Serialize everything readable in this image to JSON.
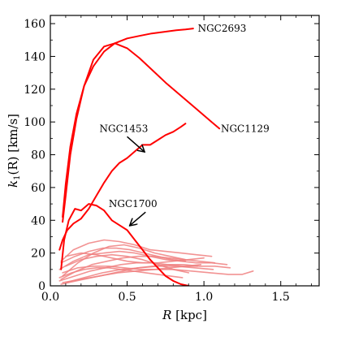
{
  "chart_data": {
    "type": "line",
    "xlabel": "R [kpc]",
    "xlabel_var": "R",
    "xlabel_unit": " [kpc]",
    "ylabel": "k1(R) [km/s]",
    "ylabel_var": "k",
    "ylabel_sub": "1",
    "ylabel_arg": "(R)",
    "ylabel_unit": " [km/s]",
    "xlim": [
      0,
      1.75
    ],
    "ylim": [
      0,
      165
    ],
    "xticks": [
      0.0,
      0.5,
      1.0,
      1.5
    ],
    "xtick_labels": [
      "0.0",
      "0.5",
      "1.0",
      "1.5"
    ],
    "yticks": [
      0,
      20,
      40,
      60,
      80,
      100,
      120,
      140,
      160
    ],
    "ytick_labels": [
      "0",
      "20",
      "40",
      "60",
      "80",
      "100",
      "120",
      "140",
      "160"
    ],
    "grid": false,
    "legend": "none",
    "colors": {
      "highlight": "#ff0000",
      "faint": "#f08080"
    },
    "annotations": [
      {
        "text": "NGC2693",
        "x": 0.96,
        "y": 157,
        "arrow": false
      },
      {
        "text": "NGC1129",
        "x": 1.11,
        "y": 96,
        "arrow": false
      },
      {
        "text": "NGC1453",
        "x": 0.32,
        "y": 96,
        "arrow": true,
        "arrow_from": [
          0.5,
          91
        ],
        "arrow_to": [
          0.61,
          82
        ]
      },
      {
        "text": "NGC1700",
        "x": 0.38,
        "y": 50,
        "arrow": true,
        "arrow_from": [
          0.62,
          45
        ],
        "arrow_to": [
          0.52,
          37
        ]
      }
    ],
    "series": [
      {
        "name": "NGC2693",
        "style": "highlight",
        "x": [
          0.08,
          0.1,
          0.13,
          0.17,
          0.22,
          0.28,
          0.35,
          0.42,
          0.5,
          0.58,
          0.66,
          0.74,
          0.82,
          0.88,
          0.93
        ],
        "y": [
          42,
          62,
          85,
          105,
          122,
          134,
          143,
          148,
          151,
          152.5,
          154,
          155,
          156,
          156.5,
          157
        ]
      },
      {
        "name": "NGC1129",
        "style": "highlight",
        "x": [
          0.08,
          0.1,
          0.13,
          0.17,
          0.22,
          0.28,
          0.35,
          0.42,
          0.5,
          0.58,
          0.66,
          0.75,
          0.85,
          0.95,
          1.05,
          1.1
        ],
        "y": [
          39,
          55,
          80,
          102,
          122,
          138,
          146,
          148,
          145,
          139,
          132,
          124,
          116,
          108,
          100,
          96
        ]
      },
      {
        "name": "NGC1453",
        "style": "highlight",
        "x": [
          0.06,
          0.08,
          0.11,
          0.15,
          0.2,
          0.25,
          0.3,
          0.35,
          0.4,
          0.45,
          0.5,
          0.55,
          0.6,
          0.65,
          0.7,
          0.75,
          0.8,
          0.85,
          0.88
        ],
        "y": [
          22,
          28,
          34,
          38,
          41,
          47,
          55,
          63,
          70,
          75,
          78,
          82,
          86,
          86,
          89,
          92,
          94,
          97,
          99
        ]
      },
      {
        "name": "NGC1700",
        "style": "highlight",
        "x": [
          0.07,
          0.09,
          0.12,
          0.16,
          0.2,
          0.25,
          0.3,
          0.35,
          0.4,
          0.45,
          0.5,
          0.55,
          0.6,
          0.65,
          0.7,
          0.75,
          0.8,
          0.85,
          0.9
        ],
        "y": [
          10,
          28,
          40,
          47,
          46,
          50,
          49,
          46,
          40,
          37,
          34,
          28,
          22,
          16,
          11,
          6,
          3,
          1,
          0
        ]
      },
      {
        "name": "",
        "style": "faint",
        "x": [
          0.07,
          0.15,
          0.25,
          0.35,
          0.45,
          0.55,
          0.65,
          0.75,
          0.85,
          0.95,
          1.05
        ],
        "y": [
          15,
          22,
          26,
          28,
          27,
          25,
          22,
          21,
          20,
          19,
          18
        ]
      },
      {
        "name": "",
        "style": "faint",
        "x": [
          0.08,
          0.18,
          0.28,
          0.38,
          0.48,
          0.58,
          0.68,
          0.78,
          0.88
        ],
        "y": [
          6,
          14,
          20,
          24,
          25,
          23,
          20,
          18,
          16
        ]
      },
      {
        "name": "",
        "style": "faint",
        "x": [
          0.06,
          0.15,
          0.25,
          0.35,
          0.45,
          0.55,
          0.65,
          0.75,
          0.85,
          0.95,
          1.05,
          1.15
        ],
        "y": [
          10,
          15,
          19,
          20,
          21,
          20,
          18,
          16,
          15,
          14,
          14,
          13
        ]
      },
      {
        "name": "",
        "style": "faint",
        "x": [
          0.07,
          0.17,
          0.27,
          0.37,
          0.47,
          0.57,
          0.67,
          0.77,
          0.87,
          0.97,
          1.07
        ],
        "y": [
          4,
          9,
          13,
          15,
          17,
          18,
          18,
          17,
          16,
          15,
          14
        ]
      },
      {
        "name": "",
        "style": "faint",
        "x": [
          0.1,
          0.2,
          0.3,
          0.4,
          0.5,
          0.6,
          0.7,
          0.8,
          0.9,
          1.0
        ],
        "y": [
          18,
          20,
          19,
          17,
          15,
          14,
          14,
          15,
          16,
          17
        ]
      },
      {
        "name": "",
        "style": "faint",
        "x": [
          0.06,
          0.16,
          0.26,
          0.36,
          0.46,
          0.56,
          0.66,
          0.76,
          0.86,
          0.96
        ],
        "y": [
          3,
          6,
          9,
          11,
          13,
          14,
          14,
          13,
          12,
          12
        ]
      },
      {
        "name": "",
        "style": "faint",
        "x": [
          0.08,
          0.2,
          0.32,
          0.44,
          0.56,
          0.68,
          0.8,
          0.92,
          1.04,
          1.16,
          1.25,
          1.32
        ],
        "y": [
          2,
          4,
          6,
          8,
          9,
          10,
          10,
          9,
          8,
          7,
          7,
          9
        ]
      },
      {
        "name": "",
        "style": "faint",
        "x": [
          0.1,
          0.2,
          0.3,
          0.4,
          0.5,
          0.6,
          0.7,
          0.8,
          0.9
        ],
        "y": [
          12,
          16,
          18,
          19,
          18,
          16,
          13,
          10,
          8
        ]
      },
      {
        "name": "",
        "style": "faint",
        "x": [
          0.07,
          0.17,
          0.27,
          0.37,
          0.47,
          0.57,
          0.67,
          0.77,
          0.87,
          0.97,
          1.07,
          1.17
        ],
        "y": [
          1,
          3,
          5,
          7,
          9,
          11,
          12,
          13,
          13,
          12,
          12,
          11
        ]
      },
      {
        "name": "",
        "style": "faint",
        "x": [
          0.08,
          0.18,
          0.28,
          0.38,
          0.48,
          0.58,
          0.68,
          0.78,
          0.88,
          0.98
        ],
        "y": [
          8,
          11,
          12,
          12,
          11,
          10,
          10,
          11,
          12,
          13
        ]
      },
      {
        "name": "",
        "style": "faint",
        "x": [
          0.06,
          0.14,
          0.22,
          0.3,
          0.38,
          0.46,
          0.54,
          0.62,
          0.7,
          0.78,
          0.86
        ],
        "y": [
          5,
          8,
          10,
          11,
          11,
          10,
          9,
          8,
          7,
          6,
          5
        ]
      },
      {
        "name": "",
        "style": "faint",
        "x": [
          0.1,
          0.22,
          0.34,
          0.46,
          0.58,
          0.7,
          0.82,
          0.94,
          1.06
        ],
        "y": [
          2,
          5,
          8,
          10,
          11,
          12,
          12,
          11,
          10
        ]
      },
      {
        "name": "",
        "style": "faint",
        "x": [
          0.07,
          0.16,
          0.25,
          0.34,
          0.43,
          0.52,
          0.61,
          0.7,
          0.79,
          0.88
        ],
        "y": [
          14,
          18,
          21,
          23,
          23,
          22,
          20,
          18,
          16,
          15
        ]
      }
    ]
  }
}
